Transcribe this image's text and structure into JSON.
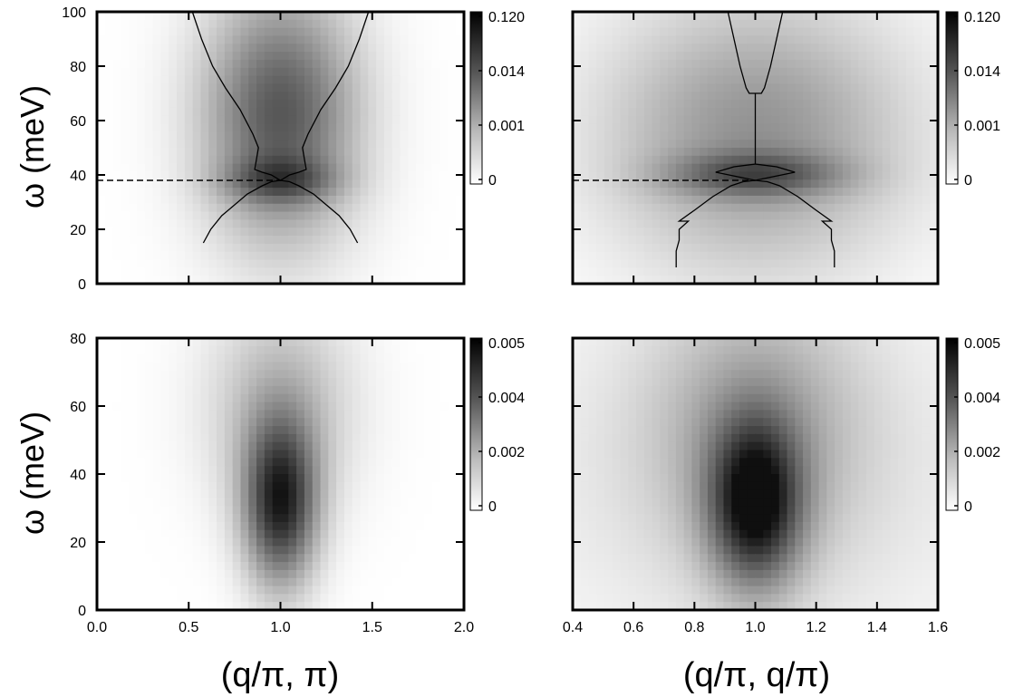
{
  "figure": {
    "x_labels": [
      "(q/π, π)",
      "(q/π, q/π)"
    ]
  },
  "chart_data": [
    {
      "id": "top-left",
      "type": "heatmap",
      "xlabel": "",
      "ylabel": "ω (meV)",
      "xlim": [
        0.0,
        2.0
      ],
      "ylim": [
        0,
        100
      ],
      "x_ticks": [
        0.0,
        0.5,
        1.0,
        1.5,
        2.0
      ],
      "y_ticks": [
        0,
        20,
        40,
        60,
        80,
        100
      ],
      "y_tick_labels": [
        "0",
        "20",
        "40",
        "60",
        "80",
        "100"
      ],
      "x_tick_labels_visible": false,
      "colorbar": {
        "ticks": [
          "0.120",
          "0.014",
          "0.001",
          "0"
        ]
      },
      "dashed_line": {
        "y": 38,
        "x_range": [
          0.0,
          1.0
        ]
      },
      "intensity_blobs": [
        {
          "cx": 1.0,
          "cy": 62,
          "sx": 0.42,
          "sy": 46,
          "amp": 0.7
        },
        {
          "cx": 1.0,
          "cy": 38,
          "sx": 0.3,
          "sy": 8,
          "amp": 0.35
        }
      ],
      "dispersion_curves": [
        {
          "name": "upper",
          "x": [
            0.52,
            0.57,
            0.63,
            0.7,
            0.78,
            0.85,
            0.88,
            0.86,
            0.9,
            0.95,
            1.0,
            1.05,
            1.1,
            1.14,
            1.12,
            1.15,
            1.22,
            1.3,
            1.37,
            1.43,
            1.48
          ],
          "y": [
            100,
            90,
            80,
            72,
            64,
            55,
            50,
            42,
            41,
            40,
            38,
            40,
            41,
            42,
            50,
            55,
            64,
            72,
            80,
            90,
            100
          ]
        },
        {
          "name": "lower",
          "x": [
            0.58,
            0.62,
            0.68,
            0.75,
            0.82,
            0.9,
            0.95,
            1.0,
            1.05,
            1.1,
            1.18,
            1.25,
            1.32,
            1.38,
            1.42
          ],
          "y": [
            15,
            20,
            25,
            29,
            33,
            36,
            37.5,
            38,
            37.5,
            36,
            33,
            29,
            25,
            20,
            15
          ]
        }
      ]
    },
    {
      "id": "top-right",
      "type": "heatmap",
      "xlabel": "",
      "ylabel": "",
      "xlim": [
        0.4,
        1.6
      ],
      "ylim": [
        0,
        100
      ],
      "x_ticks": [
        0.4,
        0.6,
        0.8,
        1.0,
        1.2,
        1.4,
        1.6
      ],
      "y_ticks": [
        0,
        20,
        40,
        60,
        80,
        100
      ],
      "x_tick_labels_visible": false,
      "y_tick_labels_visible": false,
      "colorbar": {
        "ticks": [
          "0.120",
          "0.014",
          "0.001",
          "0"
        ]
      },
      "dashed_line": {
        "y": 38,
        "x_range": [
          0.4,
          1.0
        ]
      },
      "intensity_blobs": [
        {
          "cx": 1.0,
          "cy": 55,
          "sx": 0.5,
          "sy": 50,
          "amp": 0.45
        },
        {
          "cx": 1.0,
          "cy": 40,
          "sx": 0.28,
          "sy": 8,
          "amp": 0.4
        }
      ],
      "dispersion_curves": [
        {
          "name": "upper",
          "x": [
            0.91,
            0.93,
            0.95,
            0.97,
            0.98,
            1.0,
            1.02,
            1.03,
            1.05,
            1.07,
            1.09
          ],
          "y": [
            100,
            90,
            80,
            72,
            70,
            70,
            70,
            72,
            80,
            90,
            100
          ]
        },
        {
          "name": "middle",
          "x": [
            1.0,
            1.0,
            1.0,
            0.93,
            0.87,
            1.0,
            1.13,
            1.07,
            1.0,
            1.0,
            1.0
          ],
          "y": [
            70,
            56,
            44,
            43,
            41,
            38,
            41,
            43,
            44,
            56,
            70
          ]
        },
        {
          "name": "lower",
          "x": [
            0.74,
            0.74,
            0.75,
            0.75,
            0.78,
            0.75,
            0.8,
            0.86,
            0.92,
            0.96,
            1.0,
            1.04,
            1.08,
            1.14,
            1.2,
            1.25,
            1.22,
            1.25,
            1.25,
            1.26,
            1.26
          ],
          "y": [
            6,
            12,
            16,
            20,
            23,
            23,
            27,
            32,
            36,
            37.5,
            38,
            37.5,
            36,
            32,
            27,
            23,
            23,
            20,
            16,
            12,
            6
          ]
        }
      ]
    },
    {
      "id": "bottom-left",
      "type": "heatmap",
      "xlabel": "",
      "ylabel": "ω (meV)",
      "xlim": [
        0.0,
        2.0
      ],
      "ylim": [
        0,
        80
      ],
      "x_ticks": [
        0.0,
        0.5,
        1.0,
        1.5,
        2.0
      ],
      "x_tick_labels": [
        "0.0",
        "0.5",
        "1.0",
        "1.5",
        "2.0"
      ],
      "y_ticks": [
        0,
        20,
        40,
        60,
        80
      ],
      "y_tick_labels": [
        "0",
        "20",
        "40",
        "60",
        "80"
      ],
      "colorbar": {
        "ticks": [
          "0.005",
          "0.004",
          "0.002",
          "0"
        ]
      },
      "intensity_blobs": [
        {
          "cx": 1.0,
          "cy": 31,
          "sx": 0.2,
          "sy": 24,
          "amp": 0.85
        },
        {
          "cx": 1.0,
          "cy": 60,
          "sx": 0.4,
          "sy": 32,
          "amp": 0.3
        }
      ]
    },
    {
      "id": "bottom-right",
      "type": "heatmap",
      "xlabel": "",
      "ylabel": "",
      "xlim": [
        0.4,
        1.6
      ],
      "ylim": [
        0,
        80
      ],
      "x_ticks": [
        0.4,
        0.6,
        0.8,
        1.0,
        1.2,
        1.4,
        1.6
      ],
      "x_tick_labels": [
        "0.4",
        "0.6",
        "0.8",
        "1.0",
        "1.2",
        "1.4",
        "1.6"
      ],
      "y_ticks": [
        0,
        20,
        40,
        60,
        80
      ],
      "y_tick_labels_visible": false,
      "colorbar": {
        "ticks": [
          "0.005",
          "0.004",
          "0.002",
          "0"
        ]
      },
      "intensity_blobs": [
        {
          "cx": 1.0,
          "cy": 31,
          "sx": 0.15,
          "sy": 24,
          "amp": 0.85
        },
        {
          "cx": 1.0,
          "cy": 55,
          "sx": 0.35,
          "sy": 40,
          "amp": 0.3
        },
        {
          "cx": 1.0,
          "cy": 40,
          "sx": 0.9,
          "sy": 60,
          "amp": 0.12
        }
      ]
    }
  ]
}
